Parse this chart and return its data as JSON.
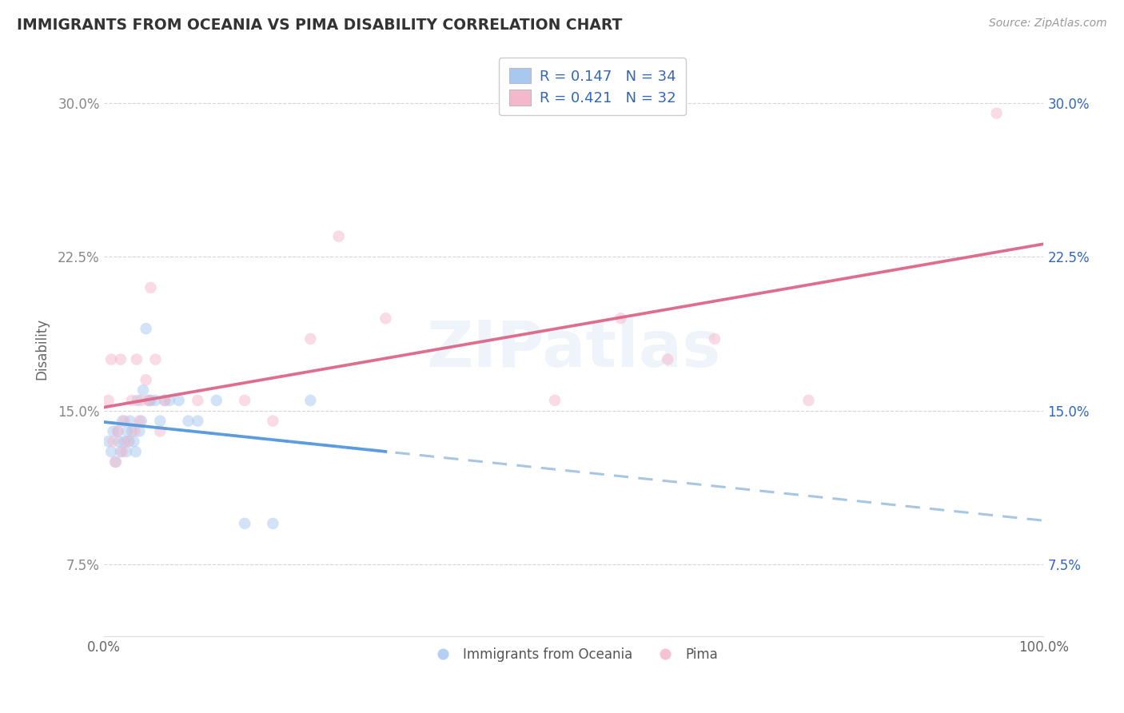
{
  "title": "IMMIGRANTS FROM OCEANIA VS PIMA DISABILITY CORRELATION CHART",
  "source_text": "Source: ZipAtlas.com",
  "ylabel": "Disability",
  "xlim": [
    0.0,
    1.0
  ],
  "ylim": [
    0.04,
    0.32
  ],
  "ytick_vals": [
    0.075,
    0.15,
    0.225,
    0.3
  ],
  "ytick_labels": [
    "7.5%",
    "15.0%",
    "22.5%",
    "30.0%"
  ],
  "blue_r": 0.147,
  "blue_n": 34,
  "pink_r": 0.421,
  "pink_n": 32,
  "blue_color": "#a8c8f0",
  "pink_color": "#f4b8cc",
  "blue_line_color": "#5599dd",
  "pink_line_color": "#dd6688",
  "dashed_line_color": "#99bbdd",
  "legend_text_color": "#3366bb",
  "background_color": "#ffffff",
  "grid_color": "#cccccc",
  "title_color": "#333333",
  "blue_scatter_x": [
    0.005,
    0.008,
    0.01,
    0.013,
    0.015,
    0.016,
    0.018,
    0.02,
    0.022,
    0.024,
    0.025,
    0.027,
    0.028,
    0.03,
    0.032,
    0.034,
    0.036,
    0.038,
    0.04,
    0.042,
    0.045,
    0.048,
    0.05,
    0.055,
    0.06,
    0.065,
    0.07,
    0.08,
    0.09,
    0.1,
    0.12,
    0.15,
    0.18,
    0.22
  ],
  "blue_scatter_y": [
    0.135,
    0.13,
    0.14,
    0.125,
    0.14,
    0.135,
    0.13,
    0.145,
    0.135,
    0.13,
    0.14,
    0.135,
    0.145,
    0.14,
    0.135,
    0.13,
    0.155,
    0.14,
    0.145,
    0.16,
    0.19,
    0.155,
    0.155,
    0.155,
    0.145,
    0.155,
    0.155,
    0.155,
    0.145,
    0.145,
    0.155,
    0.095,
    0.095,
    0.155
  ],
  "pink_scatter_x": [
    0.005,
    0.008,
    0.01,
    0.012,
    0.015,
    0.018,
    0.02,
    0.022,
    0.025,
    0.03,
    0.033,
    0.035,
    0.038,
    0.04,
    0.045,
    0.048,
    0.05,
    0.055,
    0.06,
    0.065,
    0.1,
    0.15,
    0.18,
    0.22,
    0.25,
    0.3,
    0.48,
    0.55,
    0.6,
    0.65,
    0.75,
    0.95
  ],
  "pink_scatter_y": [
    0.155,
    0.175,
    0.135,
    0.125,
    0.14,
    0.175,
    0.13,
    0.145,
    0.135,
    0.155,
    0.14,
    0.175,
    0.145,
    0.155,
    0.165,
    0.155,
    0.21,
    0.175,
    0.14,
    0.155,
    0.155,
    0.155,
    0.145,
    0.185,
    0.235,
    0.195,
    0.155,
    0.195,
    0.175,
    0.185,
    0.155,
    0.295
  ],
  "watermark": "ZIPatlas",
  "marker_size": 110,
  "marker_alpha": 0.5,
  "line_width": 2.2,
  "blue_line_x_end": 0.35,
  "blue_line_x_start": 0.0
}
